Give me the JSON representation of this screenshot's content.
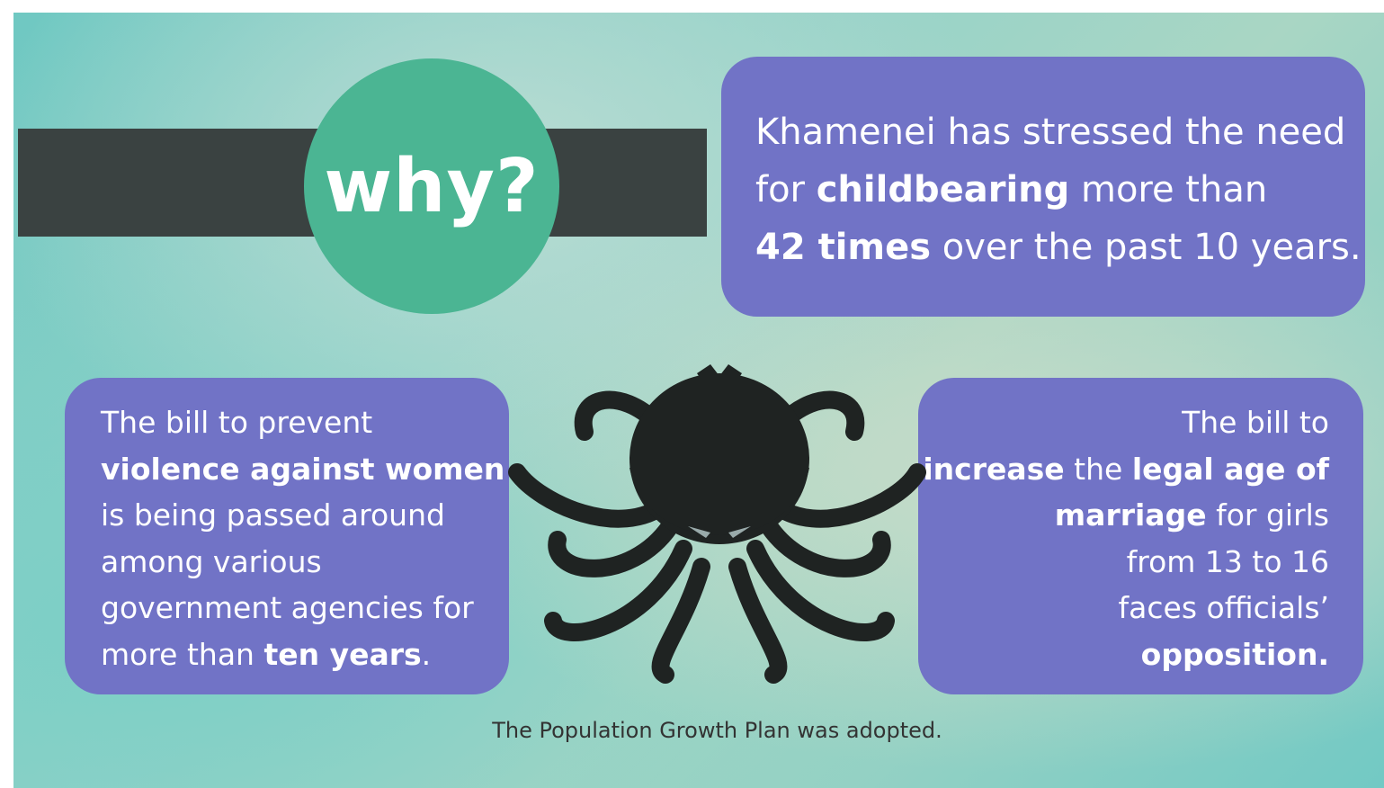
{
  "header": {
    "title": "why?"
  },
  "panels": [
    {
      "align": "left",
      "lines": [
        [
          {
            "text": "Khamenei has stressed the need"
          }
        ],
        [
          {
            "text": "for "
          },
          {
            "text": "childbearing",
            "bold": true
          },
          {
            "text": " more than"
          }
        ],
        [
          {
            "text": "42 times",
            "bold": true
          },
          {
            "text": " over the past 10 years."
          }
        ]
      ]
    },
    {
      "align": "left",
      "lines": [
        [
          {
            "text": "The bill to prevent"
          }
        ],
        [
          {
            "text": "violence against women",
            "bold": true
          }
        ],
        [
          {
            "text": "is being passed around"
          }
        ],
        [
          {
            "text": "among various"
          }
        ],
        [
          {
            "text": "government agencies for"
          }
        ],
        [
          {
            "text": "more than "
          },
          {
            "text": "ten years",
            "bold": true
          },
          {
            "text": "."
          }
        ]
      ]
    },
    {
      "align": "right",
      "lines": [
        [
          {
            "text": "The bill to"
          }
        ],
        [
          {
            "text": "increase",
            "bold": true
          },
          {
            "text": " the "
          },
          {
            "text": "legal age of",
            "bold": true
          }
        ],
        [
          {
            "text": "marriage",
            "bold": true
          },
          {
            "text": " for girls"
          }
        ],
        [
          {
            "text": "from 13 to 16"
          }
        ],
        [
          {
            "text": "faces officials’"
          }
        ],
        [
          {
            "text": "opposition.",
            "bold": true
          }
        ]
      ]
    }
  ],
  "caption": "The Population Growth Plan was adopted."
}
